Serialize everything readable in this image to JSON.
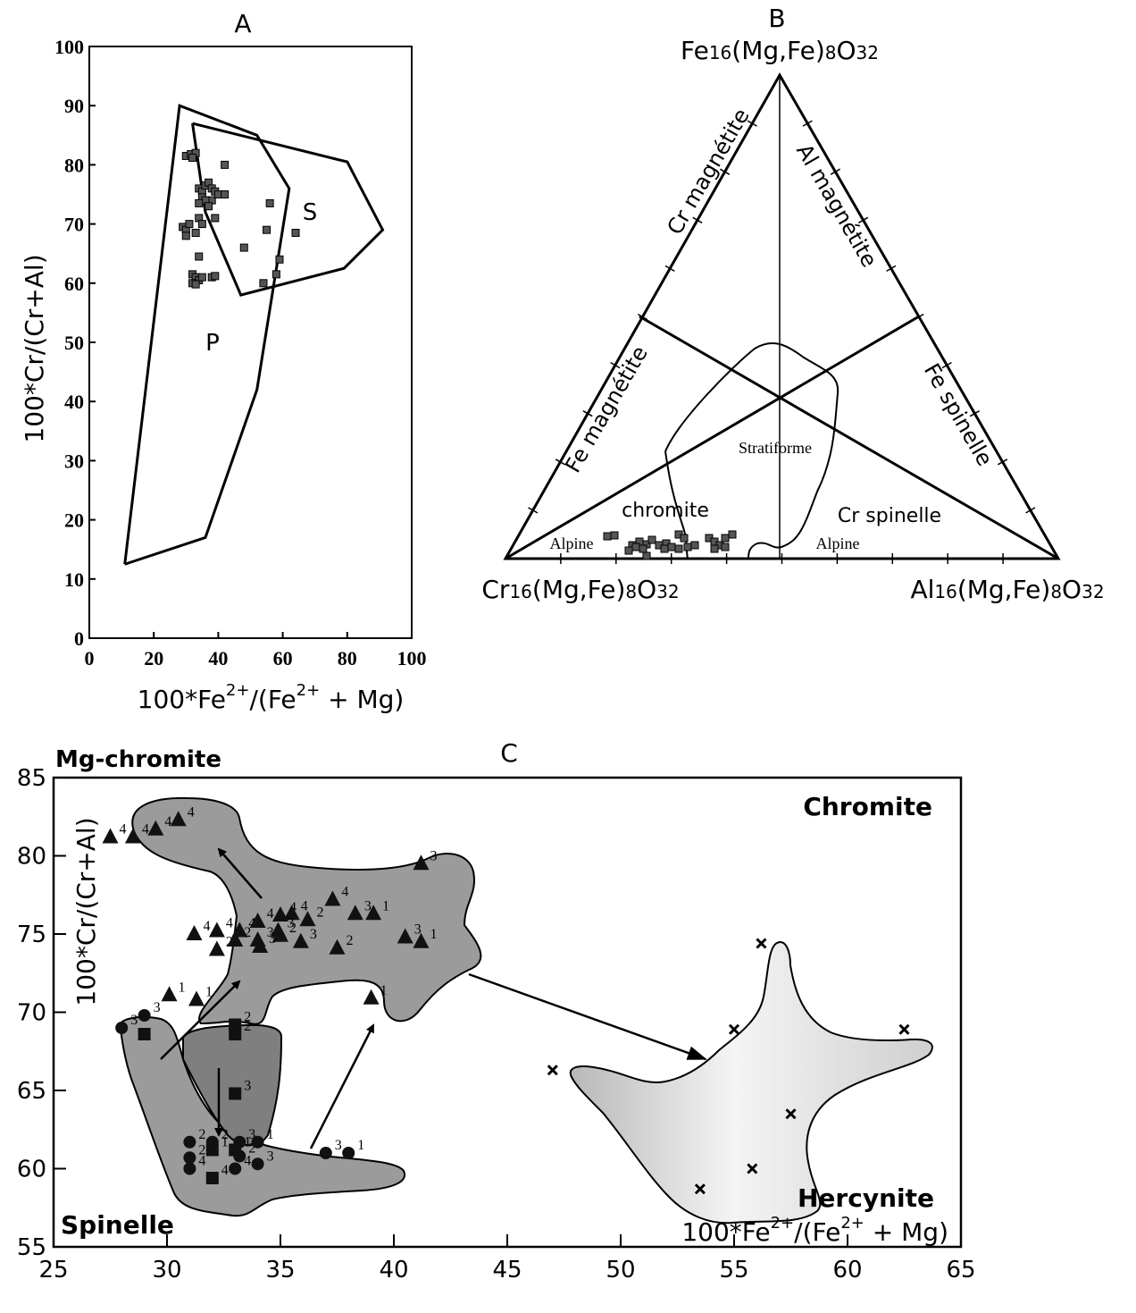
{
  "chart_data": [
    {
      "panel": "A",
      "type": "scatter",
      "xlabel": "100*Fe2+/(Fe2+ + Mg)",
      "ylabel": "100*Cr/(Cr+Al)",
      "xlim": [
        0,
        100
      ],
      "ylim": [
        0,
        100
      ],
      "x_ticks": [
        "0",
        "20",
        "40",
        "60",
        "80",
        "100"
      ],
      "y_ticks": [
        "0",
        "10",
        "20",
        "30",
        "40",
        "50",
        "60",
        "70",
        "80",
        "90",
        "100"
      ],
      "fields": [
        {
          "name": "P",
          "polygon": [
            [
              11,
              12.5
            ],
            [
              36,
              17
            ],
            [
              52,
              42
            ],
            [
              62,
              76
            ],
            [
              52,
              85
            ],
            [
              28,
              90
            ],
            [
              11,
              12.5
            ]
          ]
        },
        {
          "name": "S",
          "polygon": [
            [
              32,
              87
            ],
            [
              80,
              80.5
            ],
            [
              91,
              69
            ],
            [
              79,
              62.5
            ],
            [
              47,
              58
            ],
            [
              36,
              72
            ],
            [
              32,
              87
            ]
          ]
        }
      ],
      "points": [
        [
          30,
          81.5
        ],
        [
          31.5,
          81.8
        ],
        [
          33,
          82
        ],
        [
          32,
          81.2
        ],
        [
          34,
          76
        ],
        [
          35,
          75.5
        ],
        [
          36,
          76.5
        ],
        [
          37,
          77
        ],
        [
          38,
          76
        ],
        [
          39,
          75.5
        ],
        [
          35,
          74.5
        ],
        [
          38,
          74
        ],
        [
          40,
          75
        ],
        [
          42,
          75
        ],
        [
          36,
          74
        ],
        [
          37,
          73
        ],
        [
          34,
          73.5
        ],
        [
          42,
          80
        ],
        [
          39,
          71
        ],
        [
          29,
          69.5
        ],
        [
          30,
          69
        ],
        [
          31,
          70
        ],
        [
          34,
          71
        ],
        [
          35,
          70
        ],
        [
          33,
          68.5
        ],
        [
          30,
          68
        ],
        [
          34,
          64.5
        ],
        [
          32,
          61.5
        ],
        [
          33,
          61
        ],
        [
          34,
          60.5
        ],
        [
          32,
          60
        ],
        [
          33,
          59.8
        ],
        [
          35,
          61
        ],
        [
          38,
          61
        ],
        [
          39,
          61.2
        ],
        [
          48,
          66
        ],
        [
          56,
          73.5
        ],
        [
          55,
          69
        ],
        [
          59,
          64
        ],
        [
          58,
          61.5
        ],
        [
          54,
          60
        ],
        [
          64,
          68.5
        ]
      ]
    },
    {
      "panel": "B",
      "type": "scatter",
      "apex_top": "Fe16(Mg,Fe)8O32",
      "apex_left": "Cr16(Mg,Fe)8O32",
      "apex_right": "Al16(Mg,Fe)8O32",
      "field_labels": [
        "Cr magnétite",
        "Al magnétite",
        "Fe magnétite",
        "Fe spinelle",
        "chromite",
        "Cr spinelle",
        "Stratiforme",
        "Alpine",
        "Alpine"
      ]
    },
    {
      "panel": "C",
      "type": "scatter",
      "xlabel": "100*Fe2+/(Fe2+ + Mg)",
      "ylabel": "100*Cr/(Cr+Al)",
      "xlim": [
        25,
        65
      ],
      "ylim": [
        55,
        85
      ],
      "x_ticks": [
        "25",
        "30",
        "35",
        "40",
        "45",
        "50",
        "55",
        "60",
        "65"
      ],
      "y_ticks": [
        "55",
        "60",
        "65",
        "70",
        "75",
        "80",
        "85"
      ],
      "corner_labels": [
        "Mg-chromite",
        "Chromite",
        "Spinelle",
        "Hercynite"
      ],
      "series": [
        {
          "marker": "triangle",
          "points": [
            [
              27.5,
              81.2,
              "4"
            ],
            [
              28.5,
              81.2,
              "4"
            ],
            [
              29.5,
              81.7,
              "4"
            ],
            [
              30.5,
              82.3,
              "4"
            ],
            [
              31.2,
              75,
              "4"
            ],
            [
              32.2,
              75.2,
              "4"
            ],
            [
              33.2,
              75.2,
              "4"
            ],
            [
              34,
              75.8,
              "4"
            ],
            [
              35,
              76.2,
              "4"
            ],
            [
              35.5,
              76.3,
              "4"
            ],
            [
              37.3,
              77.2,
              "4"
            ],
            [
              32.2,
              74,
              "2"
            ],
            [
              33,
              74.6,
              "2"
            ],
            [
              34,
              74.6,
              "3"
            ],
            [
              35,
              74.9,
              "2"
            ],
            [
              36.2,
              75.9,
              "2"
            ],
            [
              37.5,
              74.1,
              "2"
            ],
            [
              34.1,
              74.2,
              "3"
            ],
            [
              34.9,
              75.2,
              "3"
            ],
            [
              35.9,
              74.5,
              "3"
            ],
            [
              38.3,
              76.3,
              "3"
            ],
            [
              40.5,
              74.8,
              "3"
            ],
            [
              41.2,
              79.5,
              "3"
            ],
            [
              39.1,
              76.3,
              "1"
            ],
            [
              41.2,
              74.5,
              "1"
            ],
            [
              39,
              70.9,
              "1"
            ],
            [
              31.3,
              70.8,
              "1"
            ],
            [
              30.1,
              71.1,
              "1"
            ]
          ]
        },
        {
          "marker": "circle",
          "points": [
            [
              28,
              69,
              "3"
            ],
            [
              29,
              69.8,
              "3"
            ],
            [
              31,
              61.7,
              "2"
            ],
            [
              31,
              60.7,
              "2"
            ],
            [
              31,
              60,
              "4"
            ],
            [
              32,
              61.7,
              "2"
            ],
            [
              33.2,
              61.7,
              "3"
            ],
            [
              33.2,
              60.8,
              "2"
            ],
            [
              34,
              61.7,
              "1"
            ],
            [
              33,
              60,
              "4"
            ],
            [
              34,
              60.3,
              "3"
            ],
            [
              37,
              61,
              "3"
            ],
            [
              38,
              61,
              "1"
            ]
          ]
        },
        {
          "marker": "square",
          "points": [
            [
              29,
              68.6,
              ""
            ],
            [
              33,
              69.2,
              "2"
            ],
            [
              33,
              68.6,
              "2"
            ],
            [
              33,
              64.8,
              "3"
            ],
            [
              32,
              61.2,
              "1"
            ],
            [
              33,
              61.2,
              "1"
            ],
            [
              32,
              59.4,
              "4"
            ]
          ]
        },
        {
          "marker": "cross",
          "points": [
            [
              47,
              66.3,
              ""
            ],
            [
              55,
              68.9,
              ""
            ],
            [
              56.2,
              74.4,
              ""
            ],
            [
              62.5,
              68.9,
              ""
            ],
            [
              57.5,
              63.5,
              ""
            ],
            [
              55.8,
              60,
              ""
            ],
            [
              53.5,
              58.7,
              ""
            ]
          ]
        }
      ]
    }
  ]
}
